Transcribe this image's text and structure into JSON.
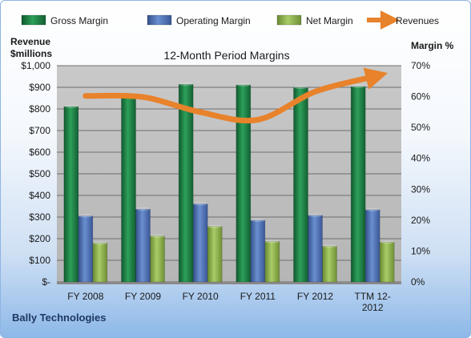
{
  "chart_data": {
    "type": "bar",
    "title": "12-Month Period Margins",
    "left_axis_label": [
      "Revenue",
      "$millions"
    ],
    "right_axis_label": "Margin %",
    "categories": [
      [
        "FY 2008"
      ],
      [
        "FY 2009"
      ],
      [
        "FY 2010"
      ],
      [
        "FY 2011"
      ],
      [
        "FY 2012"
      ],
      [
        "TTM 12-",
        "2012"
      ]
    ],
    "left_ticks": [
      "$-",
      "$100",
      "$200",
      "$300",
      "$400",
      "$500",
      "$600",
      "$700",
      "$800",
      "$900",
      "$1,000"
    ],
    "right_ticks": [
      "0%",
      "10%",
      "20%",
      "30%",
      "40%",
      "50%",
      "60%",
      "70%"
    ],
    "ylim_left": [
      0,
      1000
    ],
    "ylim_right": [
      0,
      70
    ],
    "series": [
      {
        "name": "Gross Margin",
        "type": "bar",
        "axis": "right",
        "color": "#1e8449",
        "values": [
          56.8,
          60.6,
          64.0,
          63.8,
          63.0,
          63.3
        ]
      },
      {
        "name": "Operating Margin",
        "type": "bar",
        "axis": "right",
        "color": "#4f6fb0",
        "values": [
          21.4,
          23.6,
          25.3,
          20.0,
          21.6,
          23.4
        ]
      },
      {
        "name": "Net Margin",
        "type": "bar",
        "axis": "right",
        "color": "#8cb04a",
        "values": [
          12.6,
          14.9,
          18.0,
          13.1,
          11.6,
          12.9
        ]
      },
      {
        "name": "Revenues",
        "type": "line",
        "axis": "left",
        "color": "#e8822b",
        "values": [
          860,
          855,
          785,
          750,
          880,
          948
        ]
      }
    ],
    "grid": true,
    "legend": "top"
  },
  "footer": {
    "company": "Bally Technologies"
  }
}
